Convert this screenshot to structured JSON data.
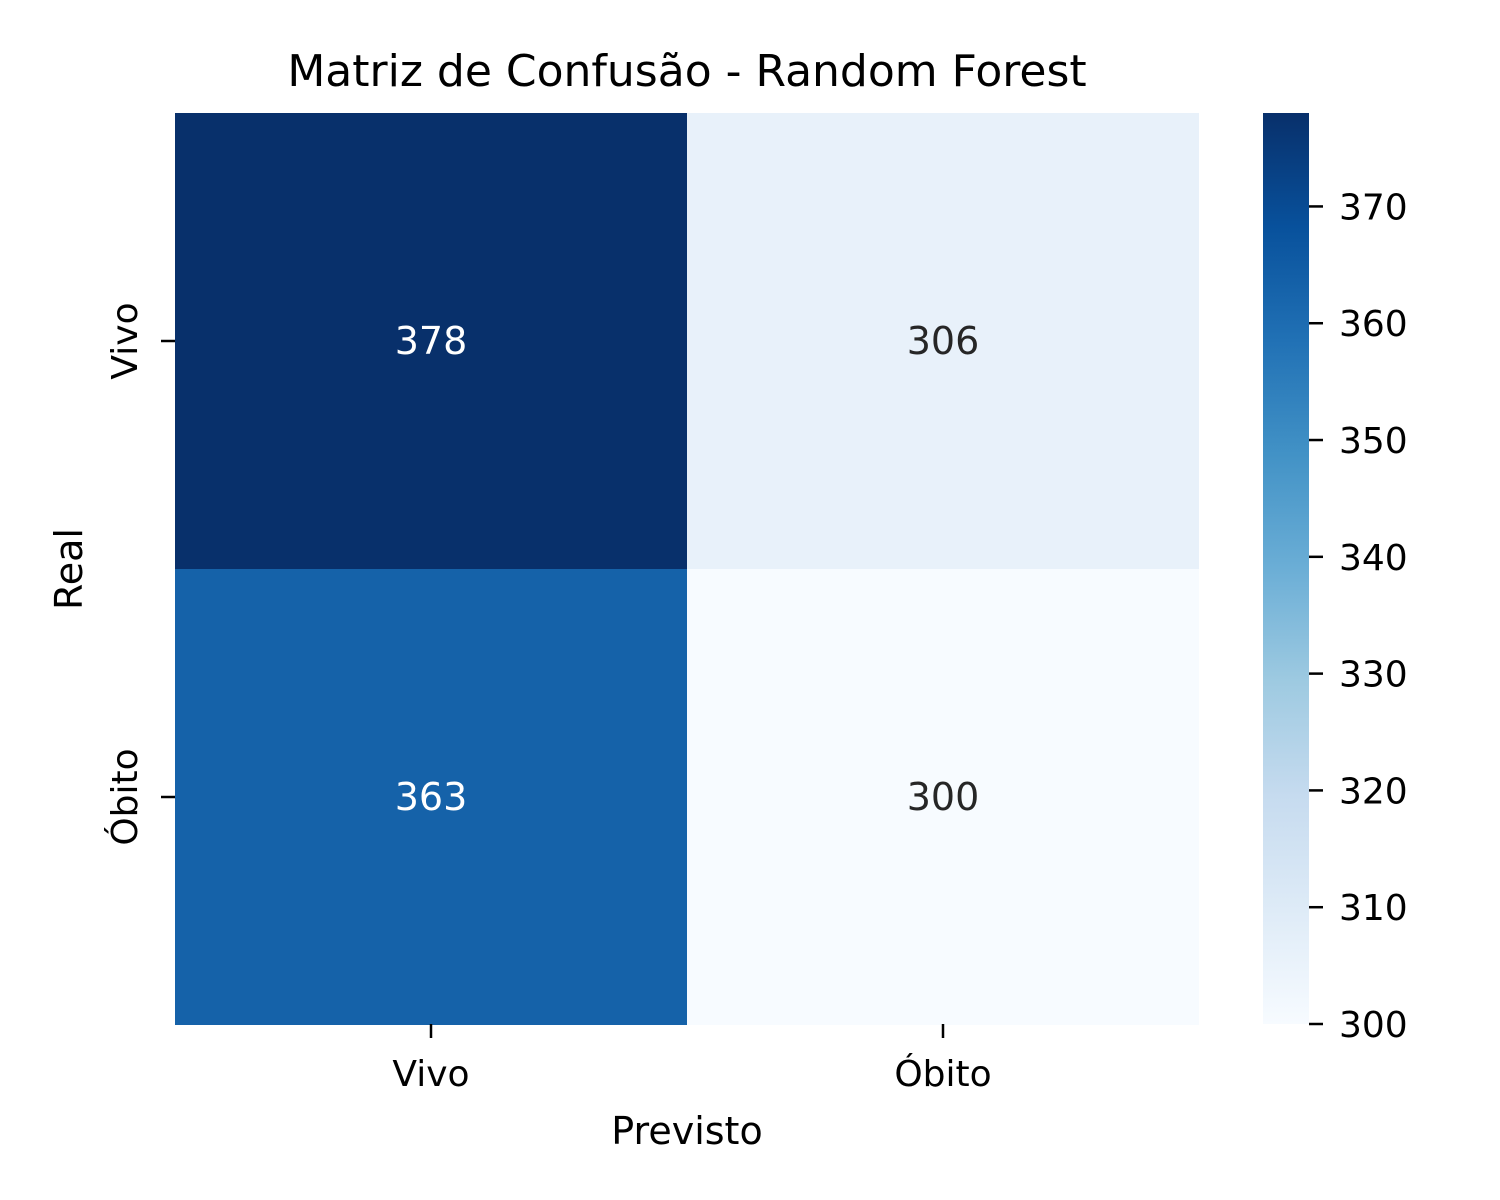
{
  "chart_data": {
    "type": "heatmap",
    "title": "Matriz de Confusão - Random Forest",
    "xlabel": "Previsto",
    "ylabel": "Real",
    "x_categories": [
      "Vivo",
      "Óbito"
    ],
    "y_categories": [
      "Vivo",
      "Óbito"
    ],
    "values": [
      [
        378,
        306
      ],
      [
        363,
        300
      ]
    ],
    "cell_labels": [
      [
        "378",
        "306"
      ],
      [
        "363",
        "300"
      ]
    ],
    "colormap": "Blues",
    "colorbar": {
      "min": 300,
      "max": 378,
      "ticks": [
        300,
        310,
        320,
        330,
        340,
        350,
        360,
        370
      ],
      "tick_labels": [
        "300",
        "310",
        "320",
        "330",
        "340",
        "350",
        "360",
        "370"
      ]
    },
    "grid": false
  }
}
